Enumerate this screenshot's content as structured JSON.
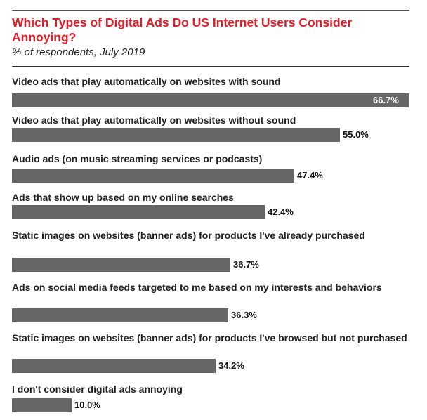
{
  "chart_data": {
    "type": "bar",
    "orientation": "horizontal",
    "title": "Which Types of Digital Ads Do US Internet Users Consider Annoying?",
    "subtitle": "% of respondents, July 2019",
    "categories": [
      "Video ads that play automatically on websites with sound",
      "Video ads that play automatically on websites without sound",
      "Audio ads (on music streaming services or podcasts)",
      "Ads that show up based on my online searches",
      "Static images on websites (banner ads) for products I've already purchased",
      "Ads on social media feeds targeted to me based on my interests and behaviors",
      "Static images on websites (banner ads) for products I've browsed but not purchased",
      "I don't consider digital ads annoying"
    ],
    "values": [
      66.7,
      55.0,
      47.4,
      42.4,
      36.7,
      36.3,
      34.2,
      10.0
    ],
    "value_labels": [
      "66.7%",
      "55.0%",
      "47.4%",
      "42.4%",
      "36.7%",
      "36.3%",
      "34.2%",
      "10.0%"
    ],
    "bar_color": "#676767",
    "title_color": "#e21d28"
  }
}
